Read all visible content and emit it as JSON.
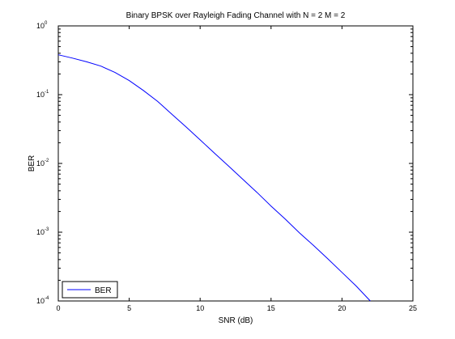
{
  "chart_data": {
    "type": "line",
    "title": "Binary BPSK over Rayleigh Fading Channel with N = 2 M = 2",
    "xlabel": "SNR (dB)",
    "ylabel": "BER",
    "xlim": [
      0,
      25
    ],
    "ylim": [
      0.0001,
      1
    ],
    "yscale": "log",
    "grid": false,
    "legend_position": "bottom-left",
    "x_ticks": [
      0,
      5,
      10,
      15,
      20,
      25
    ],
    "y_ticks": [
      {
        "value": 1,
        "base": "10",
        "exp": "0"
      },
      {
        "value": 0.1,
        "base": "10",
        "exp": "-1"
      },
      {
        "value": 0.01,
        "base": "10",
        "exp": "-2"
      },
      {
        "value": 0.001,
        "base": "10",
        "exp": "-3"
      },
      {
        "value": 0.0001,
        "base": "10",
        "exp": "-4"
      }
    ],
    "series": [
      {
        "name": "BER",
        "color": "#0000ff",
        "x": [
          0,
          1,
          2,
          3,
          4,
          5,
          6,
          7,
          8,
          9,
          10,
          11,
          12,
          13,
          14,
          15,
          16,
          17,
          18,
          19,
          20,
          21,
          22
        ],
        "y": [
          0.38,
          0.34,
          0.3,
          0.26,
          0.21,
          0.16,
          0.115,
          0.08,
          0.052,
          0.034,
          0.022,
          0.0142,
          0.0092,
          0.0059,
          0.0038,
          0.0024,
          0.00155,
          0.00098,
          0.00064,
          0.00041,
          0.00026,
          0.000165,
          0.0001
        ]
      }
    ]
  }
}
